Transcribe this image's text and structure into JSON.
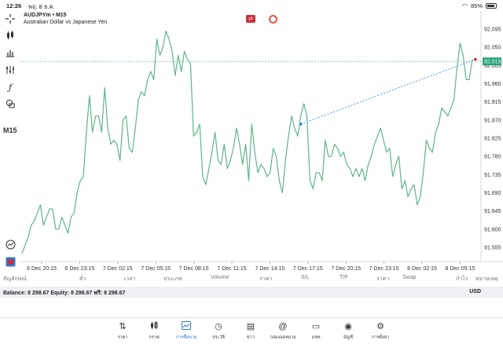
{
  "status": {
    "time": "12:26",
    "date": "พฤ. 8 ธ.ค.",
    "battery": "85%"
  },
  "header": {
    "symbol": "AUDJPYm • M15",
    "description": "Australian Dollar vs Japanese Yen"
  },
  "toolbar": {
    "timeframe": "M15",
    "icons": [
      "crosshair-icon",
      "candles-icon",
      "bars-icon",
      "indicators-icon",
      "function-icon",
      "objects-icon"
    ]
  },
  "chart_data": {
    "type": "line",
    "symbol": "AUDJPYm",
    "timeframe": "M15",
    "title": "AUDJPYm • M15",
    "subtitle": "Australian Dollar vs Japanese Yen",
    "y_ticks": [
      "92.095",
      "92.050",
      "92.005",
      "91.960",
      "91.915",
      "91.870",
      "91.825",
      "91.780",
      "91.735",
      "91.690",
      "91.645",
      "91.600",
      "91.555"
    ],
    "x_ticks": [
      "6 Dec 20:15",
      "6 Dec 23:15",
      "7 Dec 02:15",
      "7 Dec 05:15",
      "7 Dec 08:15",
      "7 Dec 11:15",
      "7 Dec 14:15",
      "7 Dec 17:15",
      "7 Dec 20:15",
      "7 Dec 23:15",
      "8 Dec 02:15",
      "8 Dec 05:15"
    ],
    "ylim": [
      91.52,
      92.13
    ],
    "current_price": "92.015",
    "current_price_value": 92.015,
    "grid": false,
    "series": [
      {
        "color": "#5fb48b",
        "values": [
          91.54,
          91.56,
          91.58,
          91.61,
          91.62,
          91.64,
          91.66,
          91.61,
          91.63,
          91.65,
          91.65,
          91.6,
          91.6,
          91.63,
          91.61,
          91.59,
          91.63,
          91.64,
          91.69,
          91.72,
          91.73,
          91.84,
          91.93,
          91.84,
          91.88,
          91.88,
          91.84,
          91.95,
          91.85,
          91.81,
          91.82,
          91.81,
          91.77,
          91.87,
          91.88,
          91.8,
          91.79,
          91.85,
          91.92,
          91.94,
          91.93,
          91.97,
          91.99,
          91.97,
          92.07,
          92.03,
          92.05,
          92.09,
          92.07,
          92.04,
          91.98,
          92.03,
          91.99,
          92.04,
          92.02,
          92.01,
          91.83,
          91.84,
          91.86,
          91.73,
          91.71,
          91.75,
          91.79,
          91.84,
          91.77,
          91.76,
          91.81,
          91.75,
          91.77,
          91.8,
          91.85,
          91.81,
          91.76,
          91.81,
          91.72,
          91.86,
          91.79,
          91.74,
          91.76,
          91.75,
          91.73,
          91.74,
          91.8,
          91.78,
          91.72,
          91.69,
          91.77,
          91.83,
          91.88,
          91.85,
          91.83,
          91.88,
          91.91,
          91.88,
          91.72,
          91.7,
          91.74,
          91.74,
          91.72,
          91.82,
          91.78,
          91.78,
          91.81,
          91.8,
          91.78,
          91.79,
          91.76,
          91.75,
          91.73,
          91.75,
          91.73,
          91.75,
          91.72,
          91.76,
          91.78,
          91.81,
          91.83,
          91.85,
          91.82,
          91.79,
          91.8,
          91.73,
          91.76,
          91.78,
          91.7,
          91.72,
          91.68,
          91.7,
          91.71,
          91.66,
          91.68,
          91.74,
          91.82,
          91.8,
          91.79,
          91.84,
          91.86,
          91.9,
          91.89,
          91.88,
          91.9,
          91.92,
          92.0,
          92.06,
          92.03,
          91.97,
          91.97,
          92.02
        ]
      }
    ],
    "trendline": {
      "from": {
        "x": 91,
        "y": 91.86
      },
      "to": {
        "x": 148,
        "y": 92.02
      }
    }
  },
  "columns": [
    "สัญลักษณ์",
    "ตั๋ว",
    "เวลา",
    "ประเภท",
    "Volume",
    "ราคา",
    "S/L",
    "T/P",
    "ราคา",
    "Swap",
    "กำไร",
    "หมายเหตุ"
  ],
  "account": {
    "balance_line": "Balance: 8 298.67 Equity: 8 298.67 ฟรี: 8 298.67",
    "currency": "USD"
  },
  "tabs": [
    {
      "label": "ราคา",
      "icon": "quotes-icon"
    },
    {
      "label": "กราฟ",
      "icon": "chart-icon"
    },
    {
      "label": "การซื้อขาย",
      "icon": "trade-icon",
      "active": true
    },
    {
      "label": "ประวัติ",
      "icon": "history-icon"
    },
    {
      "label": "ข่าว",
      "icon": "news-icon"
    },
    {
      "label": "กล่องจดหมาย",
      "icon": "mailbox-icon"
    },
    {
      "label": "แชท",
      "icon": "chat-icon"
    },
    {
      "label": "บัญชี",
      "icon": "account-icon"
    },
    {
      "label": "การตั้งค่า",
      "icon": "settings-icon"
    }
  ],
  "colors": {
    "line": "#5fb48b",
    "price_tag": "#26a37a",
    "accent": "#2a7ad6"
  }
}
